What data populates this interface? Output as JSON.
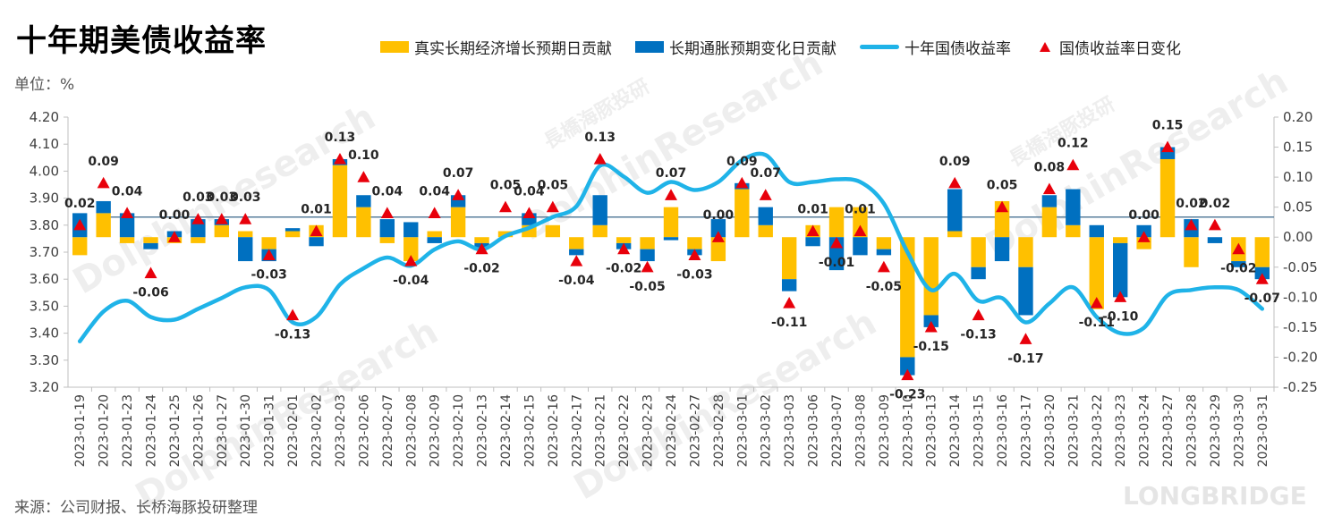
{
  "title": "十年期美债收益率",
  "unit_label": "单位：%",
  "source": "来源：公司财报、长桥海豚投研整理",
  "legend": {
    "real": "真实长期经济增长预期日贡献",
    "infl": "长期通胀预期变化日贡献",
    "yield": "十年国债收益率",
    "change": "国债收益率日变化"
  },
  "colors": {
    "real": "#FFC000",
    "infl": "#0070C0",
    "yield": "#1FB3E8",
    "change": "#E8000B",
    "ref": "#5A7F9C"
  },
  "watermarks": {
    "brand": "DolphinResearch",
    "cn": "長橋海豚投研",
    "en": "LONGBRIDGE"
  },
  "chart_data": {
    "type": "bar+line",
    "title": "十年期美债收益率",
    "left_axis": {
      "min": 3.2,
      "max": 4.2,
      "step": 0.1,
      "ticks": [
        "4.20",
        "4.10",
        "4.00",
        "3.90",
        "3.80",
        "3.70",
        "3.60",
        "3.50",
        "3.40",
        "3.30",
        "3.20"
      ]
    },
    "right_axis": {
      "min": -0.25,
      "max": 0.2,
      "step": 0.05,
      "ticks": [
        "0.20",
        "0.15",
        "0.10",
        "0.05",
        "0.00",
        "-0.05",
        "-0.10",
        "-0.15",
        "-0.20",
        "-0.25"
      ]
    },
    "categories": [
      "2023-01-19",
      "2023-01-20",
      "2023-01-23",
      "2023-01-24",
      "2023-01-25",
      "2023-01-26",
      "2023-01-27",
      "2023-01-30",
      "2023-01-31",
      "2023-02-01",
      "2023-02-02",
      "2023-02-03",
      "2023-02-06",
      "2023-02-07",
      "2023-02-08",
      "2023-02-09",
      "2023-02-10",
      "2023-02-13",
      "2023-02-14",
      "2023-02-15",
      "2023-02-16",
      "2023-02-17",
      "2023-02-21",
      "2023-02-22",
      "2023-02-23",
      "2023-02-24",
      "2023-02-27",
      "2023-02-28",
      "2023-03-01",
      "2023-03-02",
      "2023-03-03",
      "2023-03-06",
      "2023-03-07",
      "2023-03-08",
      "2023-03-09",
      "2023-03-10",
      "2023-03-13",
      "2023-03-14",
      "2023-03-15",
      "2023-03-16",
      "2023-03-17",
      "2023-03-20",
      "2023-03-21",
      "2023-03-22",
      "2023-03-23",
      "2023-03-24",
      "2023-03-27",
      "2023-03-28",
      "2023-03-29",
      "2023-03-30",
      "2023-03-31"
    ],
    "reference_line": 3.83,
    "series": [
      {
        "name": "真实长期经济增长预期日贡献",
        "type": "bar",
        "axis": "right",
        "values": [
          -0.03,
          0.04,
          -0.01,
          -0.01,
          -0.01,
          -0.01,
          0.02,
          0.01,
          -0.02,
          0.01,
          0.02,
          0.12,
          0.05,
          -0.01,
          -0.04,
          0.01,
          0.05,
          -0.01,
          0.01,
          0.02,
          0.02,
          -0.02,
          0.02,
          -0.01,
          -0.02,
          0.05,
          -0.02,
          -0.04,
          0.08,
          0.02,
          -0.07,
          0.02,
          0.05,
          0.05,
          -0.02,
          -0.2,
          -0.13,
          0.01,
          -0.05,
          0.06,
          -0.05,
          0.05,
          0.02,
          -0.12,
          -0.01,
          -0.02,
          0.13,
          -0.05,
          0.0,
          -0.04,
          -0.05
        ]
      },
      {
        "name": "长期通胀预期变化日贡献",
        "type": "bar",
        "axis": "right",
        "values": [
          0.04,
          0.02,
          0.04,
          -0.01,
          0.01,
          0.03,
          0.01,
          -0.04,
          -0.02,
          0.005,
          -0.015,
          0.01,
          0.02,
          0.03,
          0.025,
          -0.01,
          0.02,
          -0.01,
          0.0,
          0.02,
          0.0,
          -0.01,
          0.05,
          -0.01,
          -0.02,
          -0.005,
          -0.01,
          0.03,
          0.01,
          0.03,
          -0.02,
          -0.015,
          -0.055,
          -0.03,
          -0.01,
          -0.03,
          -0.02,
          0.07,
          -0.02,
          -0.04,
          -0.08,
          0.02,
          0.06,
          0.02,
          -0.09,
          0.02,
          0.02,
          0.03,
          -0.01,
          -0.01,
          -0.02
        ]
      },
      {
        "name": "十年国债收益率",
        "type": "line",
        "axis": "left",
        "values": [
          3.37,
          3.48,
          3.52,
          3.46,
          3.45,
          3.49,
          3.53,
          3.57,
          3.56,
          3.44,
          3.46,
          3.58,
          3.64,
          3.68,
          3.65,
          3.71,
          3.74,
          3.71,
          3.76,
          3.79,
          3.83,
          3.87,
          4.02,
          3.98,
          3.92,
          3.96,
          3.93,
          3.96,
          4.04,
          4.06,
          3.96,
          3.96,
          3.97,
          3.96,
          3.88,
          3.7,
          3.56,
          3.62,
          3.52,
          3.53,
          3.44,
          3.51,
          3.57,
          3.46,
          3.4,
          3.42,
          3.54,
          3.56,
          3.57,
          3.56,
          3.49
        ]
      },
      {
        "name": "国债收益率日变化",
        "type": "scatter",
        "axis": "right",
        "values": [
          0.02,
          0.09,
          0.04,
          -0.06,
          0.0,
          0.03,
          0.03,
          0.03,
          -0.03,
          -0.13,
          0.01,
          0.13,
          0.1,
          0.04,
          -0.04,
          0.04,
          0.07,
          -0.02,
          0.05,
          0.04,
          0.05,
          -0.04,
          0.13,
          -0.02,
          -0.05,
          0.07,
          -0.03,
          0.0,
          0.09,
          0.07,
          -0.11,
          0.01,
          -0.01,
          0.01,
          -0.05,
          -0.23,
          -0.15,
          0.09,
          -0.13,
          0.05,
          -0.17,
          0.08,
          0.12,
          -0.11,
          -0.1,
          0.0,
          0.15,
          0.02,
          0.02,
          -0.02,
          -0.07
        ],
        "labels": [
          "0.02",
          "0.09",
          "0.04",
          "-0.06",
          "0.00",
          "0.03",
          "0.03",
          "0.03",
          "-0.03",
          "-0.13",
          "0.01",
          "0.13",
          "0.10",
          "0.04",
          "-0.04",
          "0.04",
          "0.07",
          "-0.02",
          "0.05",
          "0.04",
          "0.05",
          "-0.04",
          "0.13",
          "-0.02",
          "-0.05",
          "0.07",
          "-0.03",
          "0.00",
          "0.09",
          "0.07",
          "-0.11",
          "0.01",
          "-0.01",
          "0.01",
          "-0.05",
          "-0.23",
          "-0.15",
          "0.09",
          "-0.13",
          "0.05",
          "-0.17",
          "0.08",
          "0.12",
          "-0.11",
          "-0.10",
          "0.00",
          "0.15",
          "0.02",
          "0.02",
          "-0.02",
          "-0.07"
        ]
      }
    ]
  }
}
